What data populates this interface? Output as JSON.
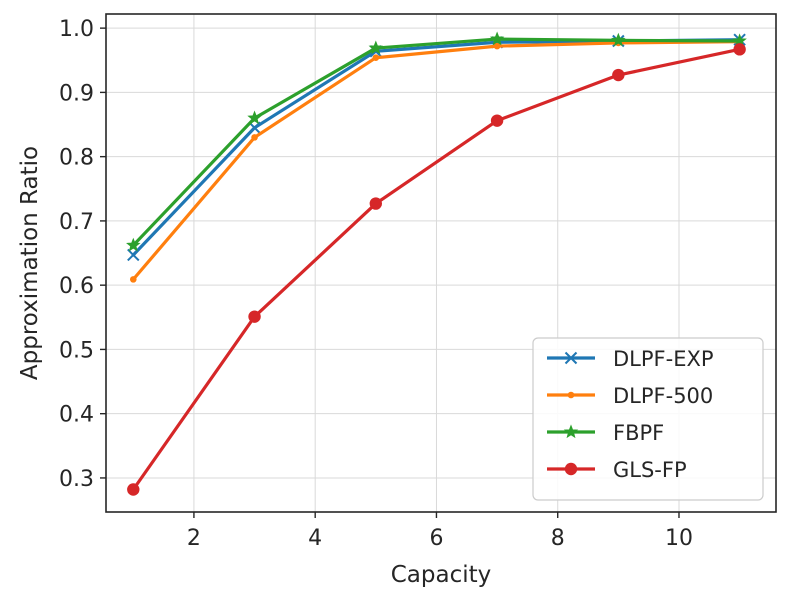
{
  "chart_data": {
    "type": "line",
    "title": "",
    "xlabel": "Capacity",
    "ylabel": "Approximation Ratio",
    "xlim": [
      0.55,
      11.6
    ],
    "ylim": [
      0.247,
      1.022
    ],
    "xticks": [
      2,
      4,
      6,
      8,
      10
    ],
    "yticks": [
      0.3,
      0.4,
      0.5,
      0.6,
      0.7,
      0.8,
      0.9,
      1.0
    ],
    "xtick_labels": [
      "2",
      "4",
      "6",
      "8",
      "10"
    ],
    "ytick_labels": [
      "0.3",
      "0.4",
      "0.5",
      "0.6",
      "0.7",
      "0.8",
      "0.9",
      "1.0"
    ],
    "grid": true,
    "legend_position": "lower-right",
    "x": [
      1,
      3,
      5,
      7,
      9,
      11
    ],
    "series": [
      {
        "name": "DLPF-EXP",
        "color": "#1f77b4",
        "marker": "x",
        "values": [
          0.647,
          0.845,
          0.964,
          0.978,
          0.98,
          0.982
        ]
      },
      {
        "name": "DLPF-500",
        "color": "#ff7f0e",
        "marker": "point",
        "values": [
          0.609,
          0.83,
          0.954,
          0.972,
          0.977,
          0.979
        ]
      },
      {
        "name": "FBPF",
        "color": "#2ca02c",
        "marker": "star",
        "values": [
          0.662,
          0.86,
          0.969,
          0.983,
          0.981,
          0.98
        ]
      },
      {
        "name": "GLS-FP",
        "color": "#d62728",
        "marker": "circle",
        "values": [
          0.282,
          0.551,
          0.727,
          0.856,
          0.927,
          0.967
        ]
      }
    ]
  }
}
